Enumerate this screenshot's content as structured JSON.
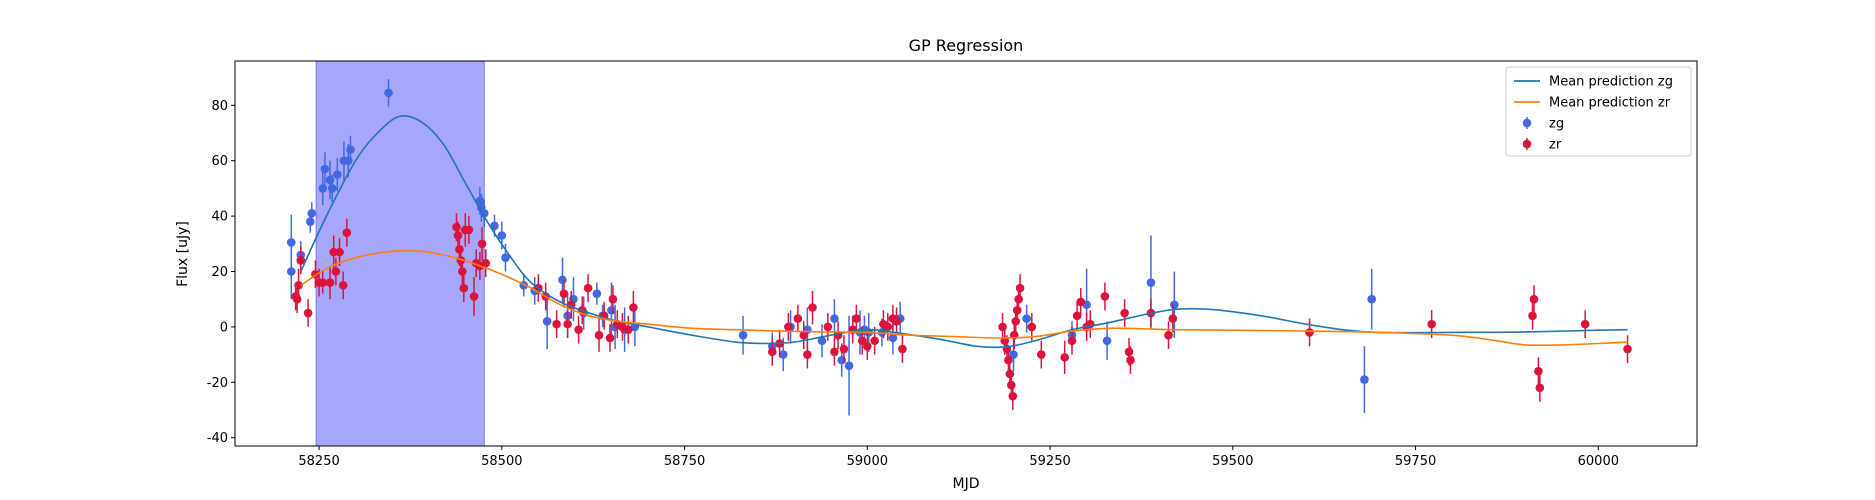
{
  "chart_data": {
    "type": "scatter",
    "title": "GP Regression",
    "xlabel": "MJD",
    "ylabel": "Flux [uJy]",
    "xlim": [
      58135,
      60135
    ],
    "ylim": [
      -43,
      96
    ],
    "xticks": [
      58250,
      58500,
      58750,
      59000,
      59250,
      59500,
      59750,
      60000
    ],
    "yticks": [
      -40,
      -20,
      0,
      20,
      40,
      60,
      80
    ],
    "grid": false,
    "legend_position": "top-right",
    "highlight_span": {
      "x0": 58246,
      "x1": 58476,
      "color": "#a6a6fb"
    },
    "series": [
      {
        "name": "Mean prediction zg",
        "kind": "line",
        "color": "#1f77b4",
        "x": [
          58225,
          58260,
          58300,
          58330,
          58360,
          58390,
          58420,
          58450,
          58480,
          58510,
          58540,
          58580,
          58620,
          58660,
          58700,
          58760,
          58820,
          58860,
          58900,
          58950,
          59000,
          59050,
          59100,
          59150,
          59190,
          59230,
          59280,
          59330,
          59380,
          59420,
          59460,
          59500,
          59550,
          59600,
          59650,
          59700,
          59800,
          59900,
          60000,
          60040
        ],
        "y": [
          20,
          40,
          60,
          70,
          76,
          74,
          66,
          52,
          38,
          26,
          16,
          9,
          5,
          2,
          0,
          -3,
          -5.5,
          -6,
          -5.5,
          -3,
          -1,
          -2.5,
          -4.5,
          -7,
          -7.2,
          -5,
          -1,
          1.5,
          4.5,
          6.3,
          6.5,
          5.5,
          3.5,
          1,
          -1,
          -2,
          -2,
          -1.8,
          -1.2,
          -1
        ]
      },
      {
        "name": "Mean prediction zr",
        "kind": "line",
        "color": "#ff7f0e",
        "x": [
          58225,
          58260,
          58300,
          58340,
          58380,
          58420,
          58460,
          58500,
          58540,
          58580,
          58620,
          58660,
          58700,
          58760,
          58820,
          58880,
          58940,
          59000,
          59060,
          59120,
          59180,
          59230,
          59280,
          59330,
          59380,
          59420,
          59500,
          59600,
          59700,
          59800,
          59860,
          59900,
          59950,
          60000,
          60040
        ],
        "y": [
          15,
          21,
          25,
          27,
          27.5,
          26,
          23,
          19,
          14,
          8,
          4,
          2,
          1,
          -0.5,
          -1,
          -1.5,
          -1.8,
          -2,
          -3,
          -3.5,
          -4,
          -3.5,
          -1.5,
          -0.5,
          -0.7,
          -1,
          -1.2,
          -1.5,
          -2,
          -3,
          -5,
          -6.5,
          -6.5,
          -6,
          -5.5
        ]
      },
      {
        "name": "zg",
        "kind": "errorbar",
        "color": "#4169e1",
        "points": [
          [
            58212,
            30.5,
            10
          ],
          [
            58212,
            20,
            10
          ],
          [
            58225,
            26,
            5
          ],
          [
            58238,
            38,
            4
          ],
          [
            58240,
            41,
            4
          ],
          [
            58255,
            50,
            6
          ],
          [
            58258,
            57,
            6
          ],
          [
            58265,
            53,
            7
          ],
          [
            58268,
            50,
            5
          ],
          [
            58275,
            55,
            6
          ],
          [
            58284,
            60,
            7
          ],
          [
            58290,
            60,
            6
          ],
          [
            58293,
            64,
            5
          ],
          [
            58345,
            84.5,
            5
          ],
          [
            58470,
            45.5,
            5
          ],
          [
            58472,
            43,
            5
          ],
          [
            58476,
            41,
            5
          ],
          [
            58490,
            36.5,
            4
          ],
          [
            58500,
            33,
            5
          ],
          [
            58505,
            25,
            5
          ],
          [
            58530,
            15,
            4
          ],
          [
            58545,
            13,
            5
          ],
          [
            58562,
            2,
            10
          ],
          [
            58583,
            17,
            8
          ],
          [
            58590,
            4,
            8
          ],
          [
            58598,
            10,
            8
          ],
          [
            58612,
            5,
            6
          ],
          [
            58630,
            12,
            4
          ],
          [
            58638,
            4,
            4
          ],
          [
            58650,
            6,
            10
          ],
          [
            58655,
            0,
            8
          ],
          [
            58668,
            -1,
            8
          ],
          [
            58682,
            0,
            7
          ],
          [
            58830,
            -3,
            7
          ],
          [
            58870,
            -7,
            5
          ],
          [
            58885,
            -10,
            6
          ],
          [
            58895,
            0,
            6
          ],
          [
            58918,
            -1,
            8
          ],
          [
            58938,
            -5,
            6
          ],
          [
            58955,
            3,
            7
          ],
          [
            58965,
            -12,
            6
          ],
          [
            58975,
            -14,
            18
          ],
          [
            58990,
            -2,
            8
          ],
          [
            58996,
            -1,
            5
          ],
          [
            59002,
            -2,
            7
          ],
          [
            59020,
            -2,
            5
          ],
          [
            59035,
            -4,
            6
          ],
          [
            59045,
            3,
            6
          ],
          [
            59200,
            -10,
            6
          ],
          [
            59218,
            3,
            5
          ],
          [
            59280,
            -3,
            5
          ],
          [
            59300,
            8,
            13
          ],
          [
            59328,
            -5,
            7
          ],
          [
            59388,
            16,
            17
          ],
          [
            59420,
            8,
            12
          ],
          [
            59680,
            -19,
            12
          ],
          [
            59690,
            10,
            11
          ]
        ]
      },
      {
        "name": "zr",
        "kind": "errorbar",
        "color": "#dc143c",
        "points": [
          [
            58218,
            11,
            5
          ],
          [
            58220,
            10,
            5
          ],
          [
            58222,
            15,
            6
          ],
          [
            58225,
            24,
            5
          ],
          [
            58235,
            5,
            5
          ],
          [
            58245,
            19,
            5
          ],
          [
            58250,
            16,
            5
          ],
          [
            58255,
            16,
            4
          ],
          [
            58265,
            16,
            6
          ],
          [
            58270,
            27,
            6
          ],
          [
            58273,
            20,
            5
          ],
          [
            58278,
            27,
            5
          ],
          [
            58283,
            15,
            5
          ],
          [
            58288,
            34,
            5
          ],
          [
            58438,
            36,
            5
          ],
          [
            58440,
            33,
            5
          ],
          [
            58442,
            28,
            6
          ],
          [
            58444,
            24,
            5
          ],
          [
            58446,
            20,
            5
          ],
          [
            58448,
            14,
            5
          ],
          [
            58450,
            35,
            6
          ],
          [
            58455,
            35,
            5
          ],
          [
            58462,
            11,
            7
          ],
          [
            58465,
            23,
            5
          ],
          [
            58470,
            22,
            5
          ],
          [
            58473,
            30,
            6
          ],
          [
            58478,
            23,
            5
          ],
          [
            58550,
            14,
            5
          ],
          [
            58560,
            11,
            5
          ],
          [
            58575,
            1,
            5
          ],
          [
            58585,
            12,
            5
          ],
          [
            58590,
            1,
            5
          ],
          [
            58595,
            8,
            5
          ],
          [
            58605,
            -1,
            5
          ],
          [
            58610,
            6,
            5
          ],
          [
            58618,
            14,
            5
          ],
          [
            58633,
            -3,
            6
          ],
          [
            58640,
            4,
            5
          ],
          [
            58648,
            -4,
            5
          ],
          [
            58652,
            10,
            5
          ],
          [
            58658,
            1,
            5
          ],
          [
            58665,
            0,
            5
          ],
          [
            58673,
            -1,
            5
          ],
          [
            58680,
            7,
            6
          ],
          [
            58870,
            -9,
            5
          ],
          [
            58880,
            -6,
            5
          ],
          [
            58892,
            0,
            5
          ],
          [
            58905,
            3,
            5
          ],
          [
            58913,
            -3,
            5
          ],
          [
            58918,
            -10,
            5
          ],
          [
            58925,
            7,
            6
          ],
          [
            58946,
            0,
            5
          ],
          [
            58955,
            -9,
            5
          ],
          [
            58960,
            -3,
            5
          ],
          [
            58968,
            -8,
            5
          ],
          [
            58980,
            -1,
            5
          ],
          [
            58985,
            3,
            5
          ],
          [
            58993,
            -5,
            5
          ],
          [
            59000,
            -7,
            5
          ],
          [
            59010,
            -5,
            5
          ],
          [
            59022,
            1,
            5
          ],
          [
            59028,
            0,
            5
          ],
          [
            59035,
            3,
            5
          ],
          [
            59040,
            2,
            5
          ],
          [
            59048,
            -8,
            5
          ],
          [
            59185,
            0,
            5
          ],
          [
            59188,
            -5,
            5
          ],
          [
            59191,
            -8,
            5
          ],
          [
            59193,
            -12,
            5
          ],
          [
            59195,
            -17,
            5
          ],
          [
            59197,
            -21,
            5
          ],
          [
            59199,
            -25,
            5
          ],
          [
            59201,
            -3,
            5
          ],
          [
            59203,
            2,
            5
          ],
          [
            59205,
            6,
            5
          ],
          [
            59207,
            10,
            5
          ],
          [
            59209,
            14,
            5
          ],
          [
            59225,
            0,
            5
          ],
          [
            59238,
            -10,
            5
          ],
          [
            59270,
            -11,
            6
          ],
          [
            59280,
            -5,
            5
          ],
          [
            59287,
            4,
            5
          ],
          [
            59292,
            9,
            5
          ],
          [
            59300,
            0,
            5
          ],
          [
            59305,
            1,
            5
          ],
          [
            59325,
            11,
            5
          ],
          [
            59352,
            5,
            5
          ],
          [
            59358,
            -9,
            5
          ],
          [
            59360,
            -12,
            5
          ],
          [
            59388,
            5,
            5
          ],
          [
            59412,
            -3,
            5
          ],
          [
            59418,
            3,
            5
          ],
          [
            59605,
            -2,
            5
          ],
          [
            59772,
            1,
            5
          ],
          [
            59910,
            4,
            5
          ],
          [
            59912,
            10,
            5
          ],
          [
            59918,
            -16,
            5
          ],
          [
            59920,
            -22,
            5
          ],
          [
            59982,
            1,
            5
          ],
          [
            60040,
            -8,
            5
          ]
        ]
      }
    ]
  }
}
